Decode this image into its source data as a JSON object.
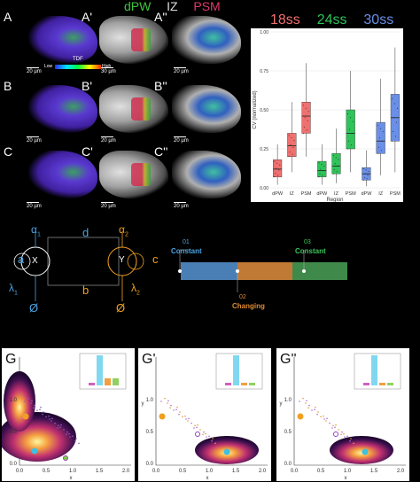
{
  "header": {
    "dpw": "dPW",
    "iz": "IZ",
    "psm": "PSM",
    "dpw_color": "#3cc43c",
    "iz_color": "#dddddd",
    "psm_color": "#e0396b"
  },
  "panels": [
    {
      "id": "A",
      "label": "A",
      "scale": "20 µm"
    },
    {
      "id": "A1",
      "label": "A'",
      "scale": "30 µm"
    },
    {
      "id": "A2",
      "label": "A''",
      "scale": "20 µm"
    },
    {
      "id": "B",
      "label": "B",
      "scale": "20 µm"
    },
    {
      "id": "B1",
      "label": "B'",
      "scale": "20 µm"
    },
    {
      "id": "B2",
      "label": "B''",
      "scale": "20 µm"
    },
    {
      "id": "C",
      "label": "C",
      "scale": "20 µm"
    },
    {
      "id": "C1",
      "label": "C'",
      "scale": "20 µm"
    },
    {
      "id": "C2",
      "label": "C''",
      "scale": "20 µm"
    }
  ],
  "colorbar": {
    "low": "Low",
    "high": "High",
    "title": "TDF"
  },
  "boxplot": {
    "stage_labels": [
      "18ss",
      "24ss",
      "30ss"
    ],
    "stage_colors": [
      "#f07070",
      "#2ec45a",
      "#6a8fe8"
    ],
    "ylabel": "CV (normalized)",
    "xlabel": "Region",
    "yticks": [
      "0.00",
      "0.25",
      "0.50",
      "0.75",
      "1.00"
    ],
    "categories": [
      "dPW",
      "IZ",
      "PSM",
      "dPW",
      "IZ",
      "PSM",
      "dPW",
      "IZ",
      "PSM"
    ]
  },
  "chart_data": {
    "type": "box",
    "ylabel": "CV (normalized)",
    "xlabel": "Region",
    "ylim": [
      0,
      1
    ],
    "groups": [
      {
        "stage": "18ss",
        "color": "#f07070",
        "boxes": [
          {
            "region": "dPW",
            "q1": 0.07,
            "median": 0.12,
            "q3": 0.18,
            "min": 0.02,
            "max": 0.28
          },
          {
            "region": "IZ",
            "q1": 0.2,
            "median": 0.27,
            "q3": 0.35,
            "min": 0.1,
            "max": 0.55
          },
          {
            "region": "PSM",
            "q1": 0.35,
            "median": 0.46,
            "q3": 0.55,
            "min": 0.2,
            "max": 0.8
          }
        ]
      },
      {
        "stage": "24ss",
        "color": "#2ec45a",
        "boxes": [
          {
            "region": "dPW",
            "q1": 0.07,
            "median": 0.11,
            "q3": 0.17,
            "min": 0.02,
            "max": 0.28
          },
          {
            "region": "IZ",
            "q1": 0.09,
            "median": 0.14,
            "q3": 0.22,
            "min": 0.03,
            "max": 0.38
          },
          {
            "region": "PSM",
            "q1": 0.25,
            "median": 0.35,
            "q3": 0.5,
            "min": 0.1,
            "max": 0.75
          }
        ]
      },
      {
        "stage": "30ss",
        "color": "#6a8fe8",
        "boxes": [
          {
            "region": "dPW",
            "q1": 0.05,
            "median": 0.09,
            "q3": 0.13,
            "min": 0.01,
            "max": 0.24
          },
          {
            "region": "IZ",
            "q1": 0.22,
            "median": 0.3,
            "q3": 0.42,
            "min": 0.08,
            "max": 0.7
          },
          {
            "region": "PSM",
            "q1": 0.3,
            "median": 0.45,
            "q3": 0.6,
            "min": 0.1,
            "max": 0.9
          }
        ]
      }
    ]
  },
  "model": {
    "alpha": "α",
    "alpha_sub": "1",
    "alpha2": "α",
    "alpha2_sub": "2",
    "a": "a",
    "c": "c",
    "d": "d",
    "b": "b",
    "x": "X",
    "y": "Y",
    "lambda1": "λ",
    "lambda1_sub": "1",
    "lambda2": "λ",
    "lambda2_sub": "2",
    "empty1": "Ø",
    "empty2": "Ø"
  },
  "timeline": {
    "s01_num": "01",
    "s01_label": "Constant",
    "s02_num": "02",
    "s02_label": "Changing",
    "s03_num": "03",
    "s03_label": "Constant",
    "colors": [
      "#4a7fb5",
      "#c07a35",
      "#3f8a4a"
    ]
  },
  "landscapes": [
    {
      "label": "G",
      "xticks": [
        "0.0",
        "0.5",
        "1.0",
        "1.5",
        "2.0"
      ],
      "yticks": [
        "0.0",
        "0.5",
        "1.0"
      ],
      "xlabel": "x",
      "ylabel": "y"
    },
    {
      "label": "G'",
      "xticks": [
        "0.0",
        "0.5",
        "1.0",
        "1.5",
        "2.0"
      ],
      "yticks": [
        "0.0",
        "0.5",
        "1.0"
      ],
      "xlabel": "x",
      "ylabel": "y"
    },
    {
      "label": "G''",
      "xticks": [
        "0.0",
        "0.5",
        "1.0",
        "1.5",
        "2.0"
      ],
      "yticks": [
        "0.0",
        "0.5",
        "1.0"
      ],
      "xlabel": "x",
      "ylabel": "y"
    }
  ]
}
